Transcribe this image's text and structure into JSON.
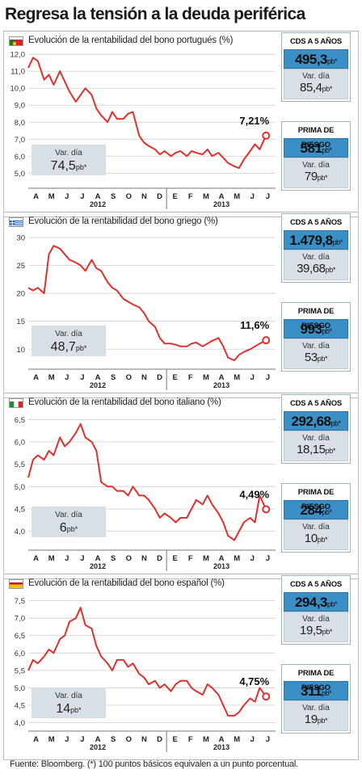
{
  "title": "Regresa la tensión a la deuda periférica",
  "footer": "Fuente: Bloomberg. (*) 100 puntos básicos equivalen a un punto porcentual.",
  "unit_pb": "pb*",
  "var_dia_label": "Var. día",
  "cds_label": "CDS A 5 AÑOS",
  "prima_label": "PRIMA DE RIESGO",
  "colors": {
    "line": "#e0312e",
    "accent_blue": "#3b8fc7",
    "box_grey": "#d8dfe5"
  },
  "months": [
    "A",
    "M",
    "J",
    "J",
    "A",
    "S",
    "O",
    "N",
    "D",
    "E",
    "F",
    "M",
    "A",
    "M",
    "J",
    "J"
  ],
  "years": [
    "2012",
    "2013"
  ],
  "panels": [
    {
      "country": "portugal",
      "flag_icon": "portugal-flag-icon",
      "title": "Evolución de la rentabilidad del bono portugués (%)",
      "last_label": "7,21%",
      "var_chart": "74,5",
      "cds_value": "495,3",
      "cds_var": "85,4",
      "prima_value": "581",
      "prima_var": "79"
    },
    {
      "country": "grecia",
      "flag_icon": "greece-flag-icon",
      "title": "Evolución de la rentabilidad del bono griego (%)",
      "last_label": "11,6%",
      "var_chart": "48,7",
      "cds_value": "1.479,8",
      "cds_var": "39,68",
      "prima_value": "993",
      "prima_var": "53"
    },
    {
      "country": "italia",
      "flag_icon": "italy-flag-icon",
      "title": "Evolución de la rentabilidad del bono italiano (%)",
      "last_label": "4,49%",
      "var_chart": "6",
      "cds_value": "292,68",
      "cds_var": "18,15",
      "prima_value": "284",
      "prima_var": "10"
    },
    {
      "country": "espana",
      "flag_icon": "spain-flag-icon",
      "title": "Evolución de la rentabilidad del bono español (%)",
      "last_label": "4,75%",
      "var_chart": "14",
      "cds_value": "294,3",
      "cds_var": "19,5",
      "prima_value": "311",
      "prima_var": "19"
    }
  ],
  "chart_data": [
    {
      "type": "line",
      "series_country": "portugal",
      "yticks": [
        "5,0",
        "6,0",
        "7,0",
        "8,0",
        "9,0",
        "10,0",
        "11,0",
        "12,0"
      ],
      "ylim": [
        4.3,
        12.2
      ],
      "x": [
        0,
        0.3,
        0.6,
        1.0,
        1.3,
        1.6,
        2.0,
        2.3,
        2.6,
        3.0,
        3.3,
        3.6,
        4.0,
        4.3,
        4.6,
        5.0,
        5.3,
        5.6,
        6.0,
        6.3,
        6.6,
        7.0,
        7.3,
        7.6,
        8.0,
        8.3,
        8.6,
        9.0,
        9.3,
        9.6,
        10.0,
        10.3,
        10.6,
        11.0,
        11.3,
        11.6,
        12.0,
        12.3,
        12.6,
        13.0,
        13.3,
        13.6,
        14.0,
        14.3,
        14.6,
        15.0
      ],
      "values": [
        11.2,
        11.8,
        11.6,
        10.5,
        10.8,
        10.2,
        11.0,
        10.4,
        9.8,
        9.2,
        9.6,
        10.0,
        9.6,
        8.8,
        8.4,
        8.0,
        8.6,
        8.2,
        8.2,
        8.5,
        8.6,
        7.2,
        6.8,
        6.6,
        6.4,
        6.1,
        6.3,
        6.0,
        6.2,
        6.3,
        6.0,
        6.3,
        6.2,
        6.1,
        6.4,
        6.0,
        6.2,
        5.9,
        5.6,
        5.4,
        5.3,
        5.8,
        6.3,
        6.7,
        6.4,
        7.21
      ]
    },
    {
      "type": "line",
      "series_country": "grecia",
      "yticks": [
        "10",
        "15",
        "20",
        "25",
        "30"
      ],
      "ylim": [
        7,
        31
      ],
      "x": [
        0,
        0.3,
        0.6,
        1.0,
        1.3,
        1.6,
        2.0,
        2.3,
        2.6,
        3.0,
        3.3,
        3.6,
        4.0,
        4.3,
        4.6,
        5.0,
        5.3,
        5.6,
        6.0,
        6.3,
        6.6,
        7.0,
        7.3,
        7.6,
        8.0,
        8.3,
        8.6,
        9.0,
        9.3,
        9.6,
        10.0,
        10.3,
        10.6,
        11.0,
        11.3,
        11.6,
        12.0,
        12.3,
        12.6,
        13.0,
        13.3,
        13.6,
        14.0,
        14.3,
        14.6,
        15.0
      ],
      "values": [
        21,
        20.5,
        21,
        20,
        27,
        28.5,
        28,
        27,
        26,
        25.5,
        25,
        24,
        26,
        24.5,
        24,
        22,
        21,
        20.5,
        19,
        18.5,
        18,
        17.5,
        16.5,
        15,
        14,
        12,
        11,
        11,
        10.8,
        10.5,
        10.5,
        11,
        11.2,
        10.5,
        11,
        11.5,
        12,
        10.5,
        8.5,
        8.0,
        9.0,
        9.5,
        10,
        10.5,
        11,
        11.6
      ]
    },
    {
      "type": "line",
      "series_country": "italia",
      "yticks": [
        "4,0",
        "4,5",
        "5,0",
        "5,5",
        "6,0",
        "6,5"
      ],
      "ylim": [
        3.65,
        6.65
      ],
      "x": [
        0,
        0.3,
        0.6,
        1.0,
        1.3,
        1.6,
        2.0,
        2.3,
        2.6,
        3.0,
        3.3,
        3.6,
        4.0,
        4.3,
        4.6,
        5.0,
        5.3,
        5.6,
        6.0,
        6.3,
        6.6,
        7.0,
        7.3,
        7.6,
        8.0,
        8.3,
        8.6,
        9.0,
        9.3,
        9.6,
        10.0,
        10.3,
        10.6,
        11.0,
        11.3,
        11.6,
        12.0,
        12.3,
        12.6,
        13.0,
        13.3,
        13.6,
        14.0,
        14.3,
        14.6,
        15.0
      ],
      "values": [
        5.2,
        5.6,
        5.7,
        5.6,
        5.8,
        5.7,
        6.1,
        5.9,
        6.0,
        6.2,
        6.4,
        6.1,
        6.0,
        5.8,
        5.1,
        5.0,
        5.0,
        4.9,
        4.9,
        4.8,
        5.0,
        4.8,
        4.8,
        4.7,
        4.5,
        4.3,
        4.4,
        4.3,
        4.2,
        4.3,
        4.3,
        4.5,
        4.7,
        4.6,
        4.8,
        4.6,
        4.4,
        4.2,
        3.9,
        3.8,
        4.0,
        4.2,
        4.3,
        4.2,
        4.8,
        4.49
      ]
    },
    {
      "type": "line",
      "series_country": "espana",
      "yticks": [
        "4,0",
        "4,5",
        "5,0",
        "5,5",
        "6,0",
        "6,5",
        "7,0",
        "7,5"
      ],
      "ylim": [
        3.85,
        7.7
      ],
      "x": [
        0,
        0.3,
        0.6,
        1.0,
        1.3,
        1.6,
        2.0,
        2.3,
        2.6,
        3.0,
        3.3,
        3.6,
        4.0,
        4.3,
        4.6,
        5.0,
        5.3,
        5.6,
        6.0,
        6.3,
        6.6,
        7.0,
        7.3,
        7.6,
        8.0,
        8.3,
        8.6,
        9.0,
        9.3,
        9.6,
        10.0,
        10.3,
        10.6,
        11.0,
        11.3,
        11.6,
        12.0,
        12.3,
        12.6,
        13.0,
        13.3,
        13.6,
        14.0,
        14.3,
        14.6,
        15.0
      ],
      "values": [
        5.5,
        5.8,
        5.7,
        5.9,
        6.1,
        6.0,
        6.4,
        6.5,
        6.9,
        7.0,
        7.3,
        6.8,
        6.7,
        6.2,
        5.9,
        5.7,
        5.5,
        5.8,
        5.8,
        5.6,
        5.7,
        5.4,
        5.3,
        5.1,
        5.2,
        5.0,
        5.1,
        4.9,
        5.1,
        5.2,
        5.2,
        5.0,
        4.9,
        4.8,
        5.1,
        5.0,
        4.8,
        4.5,
        4.2,
        4.2,
        4.3,
        4.5,
        4.7,
        4.6,
        5.0,
        4.75
      ]
    }
  ]
}
